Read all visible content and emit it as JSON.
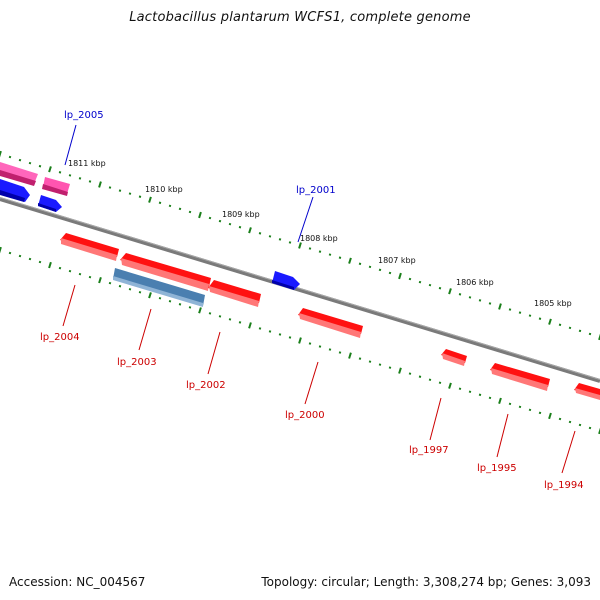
{
  "title": "Lactobacillus plantarum WCFS1, complete genome",
  "footer": {
    "accession": "Accession: NC_004567",
    "summary": "Topology: circular; Length: 3,308,274 bp; Genes: 3,093"
  },
  "colors": {
    "backbone": "#808080",
    "tick": "#1a7f1a",
    "forward_gene": "#0000ee",
    "reverse_gene": "#ee0000",
    "pink_gene": "#ff3399",
    "steel_gene": "#4a7fb0",
    "forward_label": "#0000cc",
    "reverse_label": "#cc0000"
  },
  "kbp_labels": [
    "1811 kbp",
    "1810 kbp",
    "1809 kbp",
    "1808 kbp",
    "1807 kbp",
    "1806 kbp",
    "1805 kbp"
  ],
  "gene_labels": [
    "lp_2005",
    "lp_2001",
    "lp_2004",
    "lp_2003",
    "lp_2002",
    "lp_2000",
    "lp_1997",
    "lp_1995",
    "lp_1994"
  ]
}
